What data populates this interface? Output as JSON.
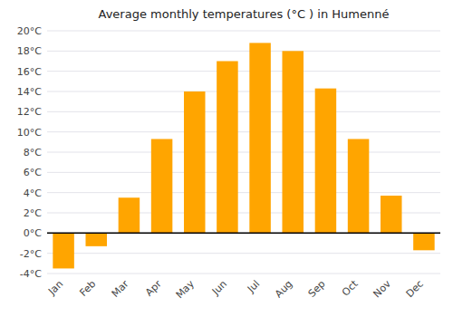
{
  "chart_data": {
    "type": "bar",
    "title": "Average monthly temperatures (°C ) in Humenné",
    "categories": [
      "Jan",
      "Feb",
      "Mar",
      "Apr",
      "May",
      "Jun",
      "Jul",
      "Aug",
      "Sep",
      "Oct",
      "Nov",
      "Dec"
    ],
    "values": [
      -3.5,
      -1.3,
      3.5,
      9.3,
      14.0,
      17.0,
      18.8,
      18.0,
      14.3,
      9.3,
      3.7,
      -1.7
    ],
    "color": "#FFA500",
    "ylim": [
      -4,
      20
    ],
    "yticks": [
      {
        "value": -4,
        "label": "-4°C"
      },
      {
        "value": -2,
        "label": "-2°C"
      },
      {
        "value": 0,
        "label": "0°C"
      },
      {
        "value": 2,
        "label": "2°C"
      },
      {
        "value": 4,
        "label": "4°C"
      },
      {
        "value": 6,
        "label": "6°C"
      },
      {
        "value": 8,
        "label": "8°C"
      },
      {
        "value": 10,
        "label": "10°C"
      },
      {
        "value": 12,
        "label": "12°C"
      },
      {
        "value": 14,
        "label": "14°C"
      },
      {
        "value": 16,
        "label": "16°C"
      },
      {
        "value": 18,
        "label": "18°C"
      },
      {
        "value": 20,
        "label": "20°C"
      }
    ],
    "grid": true
  }
}
